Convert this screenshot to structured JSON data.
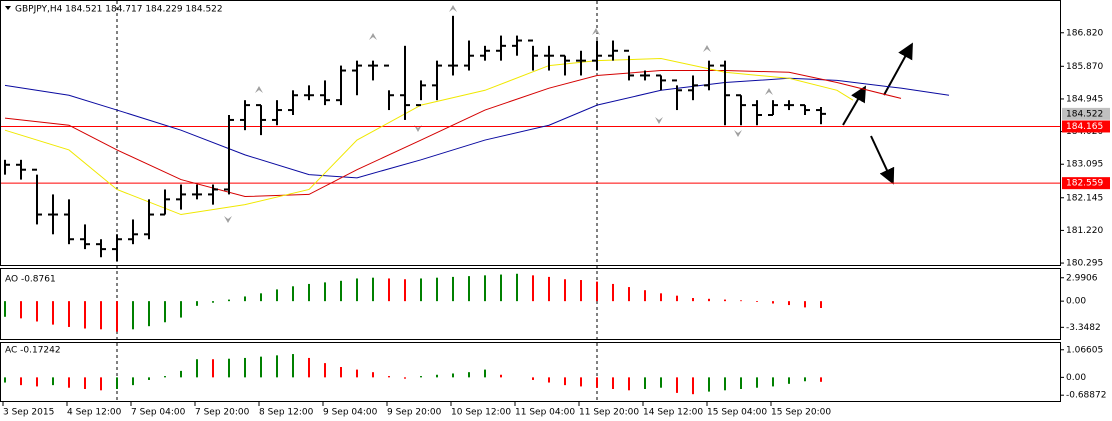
{
  "header": {
    "title": "GBPJPY,H4  184.521 184.717 184.229 184.522"
  },
  "main": {
    "ylim": [
      180.24,
      187.72
    ],
    "yticks": [
      {
        "value": 186.82,
        "label": "186.820"
      },
      {
        "value": 185.87,
        "label": "185.870"
      },
      {
        "value": 184.945,
        "label": "184.945"
      },
      {
        "value": 184.02,
        "label": "184.020"
      },
      {
        "value": 183.095,
        "label": "183.095"
      },
      {
        "value": 182.145,
        "label": "182.145"
      },
      {
        "value": 181.22,
        "label": "181.220"
      },
      {
        "value": 180.295,
        "label": "180.295"
      }
    ],
    "bar_color": "#000000",
    "high": [
      183.22,
      183.22,
      182.8,
      182.24,
      182.1,
      181.39,
      180.97,
      181.11,
      181.53,
      182.1,
      182.38,
      182.52,
      182.52,
      182.52,
      184.49,
      184.91,
      184.77,
      184.91,
      185.19,
      185.33,
      185.47,
      185.89,
      186.03,
      186.03,
      185.19,
      186.45,
      185.47,
      186.03,
      187.3,
      186.6,
      186.45,
      186.74,
      186.74,
      186.45,
      186.45,
      186.17,
      186.31,
      186.6,
      186.6,
      186.17,
      185.75,
      185.61,
      185.33,
      185.61,
      186.03,
      186.03,
      185.05,
      184.91,
      184.91,
      184.91,
      184.77,
      184.717
    ],
    "low": [
      182.8,
      182.66,
      181.39,
      181.11,
      180.83,
      180.69,
      180.46,
      180.35,
      180.83,
      180.97,
      181.67,
      181.81,
      182.1,
      181.95,
      182.24,
      184.06,
      183.92,
      184.2,
      184.49,
      184.91,
      184.77,
      184.77,
      185.05,
      185.47,
      184.63,
      184.35,
      184.91,
      184.91,
      185.61,
      185.75,
      186.03,
      186.03,
      186.17,
      185.75,
      185.75,
      185.61,
      185.61,
      185.75,
      186.03,
      185.47,
      185.47,
      185.19,
      184.63,
      184.91,
      185.19,
      184.2,
      184.2,
      184.2,
      184.49,
      184.63,
      184.49,
      184.229
    ],
    "close": [
      183.08,
      182.94,
      181.67,
      181.67,
      180.97,
      180.83,
      180.69,
      180.97,
      181.11,
      181.67,
      182.1,
      182.24,
      182.24,
      182.38,
      184.35,
      184.77,
      184.35,
      184.63,
      185.05,
      185.05,
      184.91,
      185.75,
      185.89,
      185.89,
      185.05,
      184.77,
      185.33,
      185.89,
      185.89,
      186.17,
      186.31,
      186.45,
      186.6,
      186.17,
      186.17,
      186.03,
      186.03,
      186.17,
      186.31,
      185.61,
      185.61,
      185.47,
      185.19,
      185.33,
      185.89,
      185.05,
      184.77,
      184.49,
      184.77,
      184.77,
      184.63,
      184.522
    ],
    "ma": [
      {
        "color": "#0a0aa0",
        "x": [
          0,
          4,
          7,
          11,
          15,
          19,
          22,
          26,
          30,
          34,
          37,
          41,
          45,
          49,
          52,
          56,
          59
        ],
        "values": [
          185.33,
          185.05,
          184.63,
          184.06,
          183.36,
          182.8,
          182.71,
          183.22,
          183.78,
          184.2,
          184.77,
          185.19,
          185.41,
          185.53,
          185.47,
          185.25,
          185.05
        ]
      },
      {
        "color": "#d40000",
        "x": [
          0,
          4,
          7,
          11,
          15,
          19,
          22,
          26,
          30,
          34,
          37,
          41,
          45,
          49,
          52,
          56
        ],
        "values": [
          184.4,
          184.2,
          183.5,
          182.66,
          182.18,
          182.24,
          182.94,
          183.78,
          184.63,
          185.25,
          185.61,
          185.75,
          185.75,
          185.7,
          185.41,
          184.96
        ]
      },
      {
        "color": "#f0e800",
        "x": [
          0,
          4,
          7,
          11,
          15,
          19,
          22,
          26,
          30,
          34,
          37,
          41,
          45,
          49,
          52,
          53
        ],
        "values": [
          184.06,
          183.5,
          182.38,
          181.67,
          181.95,
          182.38,
          183.78,
          184.77,
          185.19,
          185.89,
          186.03,
          186.09,
          185.7,
          185.53,
          185.19,
          184.91
        ]
      }
    ],
    "levels": [
      {
        "value": 184.165,
        "label": "184.165",
        "color": "#ff0000"
      },
      {
        "value": 182.559,
        "label": "182.559",
        "color": "#ff0000"
      }
    ],
    "current": {
      "value": 184.522,
      "label": "184.522"
    }
  },
  "ao": {
    "title": "AO -0.8761",
    "ylim": [
      -4.84,
      4.11
    ],
    "yticks": [
      {
        "value": 2.9906,
        "label": "2.9906"
      },
      {
        "value": 0,
        "label": "0.00"
      },
      {
        "value": -3.3482,
        "label": "-3.3482"
      }
    ],
    "up_color": "#008000",
    "down_color": "#ff0000",
    "values": [
      -2.0,
      -2.2,
      -2.6,
      -3.0,
      -3.3,
      -3.5,
      -3.6,
      -3.9,
      -3.6,
      -3.2,
      -2.7,
      -2.1,
      -0.6,
      -0.2,
      0.2,
      0.6,
      1.0,
      1.5,
      1.9,
      2.2,
      2.4,
      2.6,
      2.9,
      3.0,
      2.9,
      2.8,
      2.9,
      3.0,
      3.1,
      3.2,
      3.3,
      3.4,
      3.5,
      3.3,
      3.1,
      2.8,
      2.7,
      2.5,
      2.2,
      1.8,
      1.4,
      1.0,
      0.7,
      0.4,
      0.3,
      0.2,
      0.1,
      -0.1,
      -0.3,
      -0.5,
      -0.8,
      -0.8761
    ]
  },
  "ac": {
    "title": "AC -0.17242",
    "ylim": [
      -0.913,
      1.327
    ],
    "yticks": [
      {
        "value": 1.06605,
        "label": "1.06605"
      },
      {
        "value": 0,
        "label": "0.00"
      },
      {
        "value": -0.68872,
        "label": "-0.68872"
      }
    ],
    "up_color": "#008000",
    "down_color": "#ff0000",
    "values": [
      -0.2,
      -0.3,
      -0.35,
      -0.3,
      -0.4,
      -0.45,
      -0.5,
      -0.45,
      -0.3,
      -0.1,
      0.05,
      0.25,
      0.7,
      0.7,
      0.72,
      0.75,
      0.8,
      0.85,
      0.9,
      0.75,
      0.55,
      0.4,
      0.3,
      0.2,
      0.05,
      -0.05,
      0.05,
      0.1,
      0.15,
      0.2,
      0.3,
      0.1,
      0,
      -0.1,
      -0.2,
      -0.3,
      -0.35,
      -0.4,
      -0.45,
      -0.5,
      -0.45,
      -0.4,
      -0.6,
      -0.65,
      -0.55,
      -0.5,
      -0.45,
      -0.4,
      -0.35,
      -0.25,
      -0.15,
      -0.17242
    ]
  },
  "xaxis": {
    "labels": [
      "3 Sep 2015",
      "4 Sep 12:00",
      "7 Sep 04:00",
      "7 Sep 20:00",
      "8 Sep 12:00",
      "9 Sep 04:00",
      "9 Sep 20:00",
      "10 Sep 12:00",
      "11 Sep 04:00",
      "11 Sep 20:00",
      "14 Sep 12:00",
      "15 Sep 04:00",
      "15 Sep 20:00"
    ]
  }
}
